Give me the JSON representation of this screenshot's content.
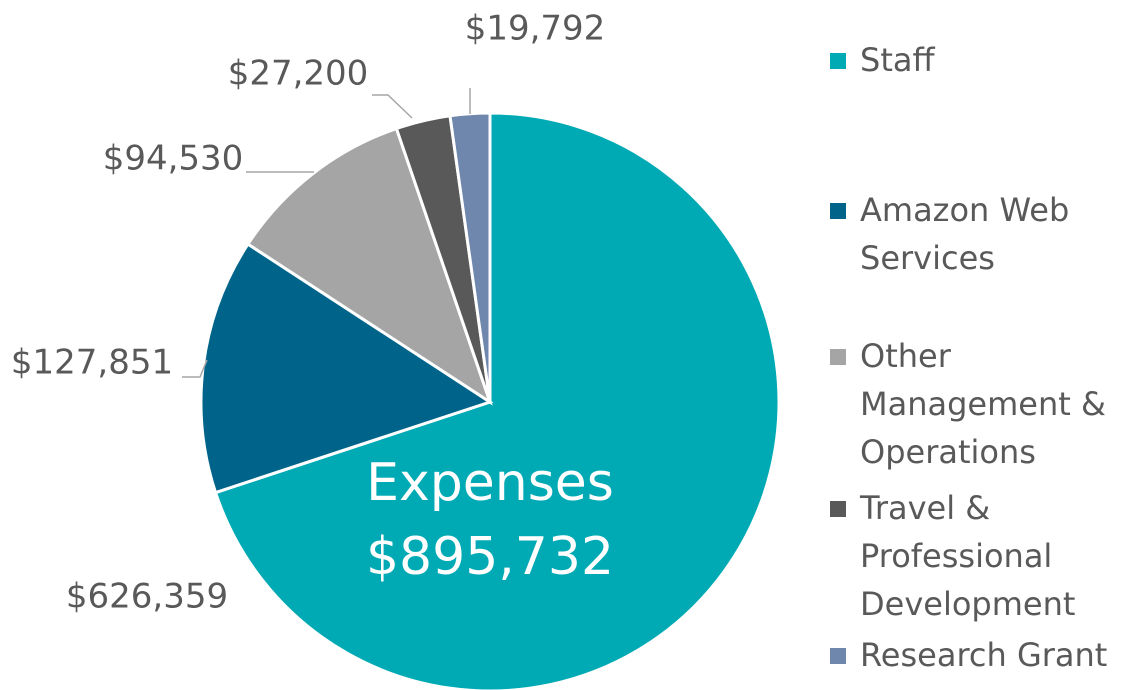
{
  "chart_data": {
    "type": "pie",
    "title": "Expenses",
    "subtitle": "$895,732",
    "categories": [
      "Staff",
      "Amazon Web Services",
      "Other Management & Operations",
      "Travel & Professional Development",
      "Research Grant"
    ],
    "values": [
      626359,
      127851,
      94530,
      27200,
      19792
    ],
    "value_labels": [
      "$626,359",
      "$127,851",
      "$94,530",
      "$27,200",
      "$19,792"
    ],
    "colors": [
      "#00aab5",
      "#00648a",
      "#a5a5a5",
      "#595959",
      "#6f86ad"
    ],
    "legend": "right"
  }
}
